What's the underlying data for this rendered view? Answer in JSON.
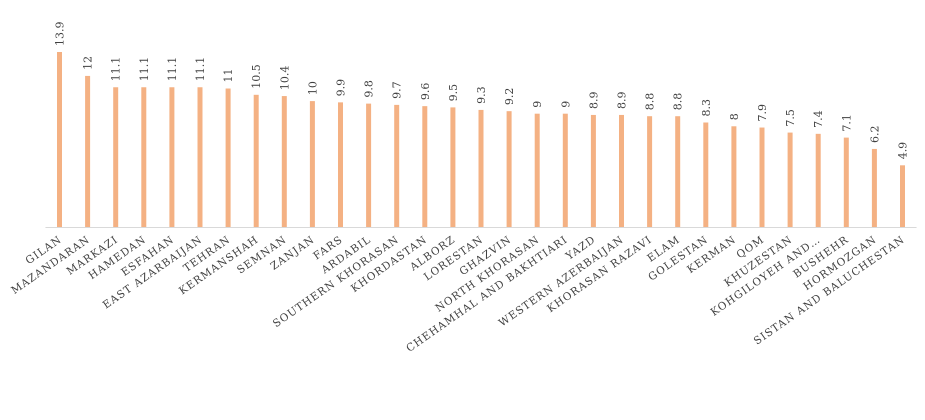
{
  "chart_data": {
    "type": "bar",
    "title": "",
    "xlabel": "",
    "ylabel": "",
    "ylim": [
      0,
      13.9
    ],
    "grid": false,
    "legend": "none",
    "bar_color": "#f4b183",
    "categories": [
      "GILAN",
      "MAZANDARAN",
      "MARKAZI",
      "HAMEDAN",
      "ESFAHAN",
      "EAST AZARBAIJAN",
      "TEHRAN",
      "KERMANSHAH",
      "SEMNAN",
      "ZANJAN",
      "FARS",
      "ARDABIL",
      "SOUTHERN KHORASAN",
      "KHORDASTAN",
      "ALBORZ",
      "LORESTAN",
      "GHAZVIN",
      "NORTH KHORASAN",
      "CHEHAMHAL AND BAKHTIARI",
      "YAZD",
      "WESTERN AZERBAIJAN",
      "KHORASAN RAZAVI",
      "ELAM",
      "GOLESTAN",
      "KERMAN",
      "QOM",
      "KHUZESTAN",
      "KOHGILOYEH AND…",
      "BUSHEHR",
      "HORMOZGAN",
      "SISTAN AND BALUCHESTAN"
    ],
    "values": [
      13.9,
      12,
      11.1,
      11.1,
      11.1,
      11.1,
      11,
      10.5,
      10.4,
      10,
      9.9,
      9.8,
      9.7,
      9.6,
      9.5,
      9.3,
      9.2,
      9,
      9,
      8.9,
      8.9,
      8.8,
      8.8,
      8.3,
      8,
      7.9,
      7.5,
      7.4,
      7.1,
      6.2,
      4.9
    ]
  }
}
